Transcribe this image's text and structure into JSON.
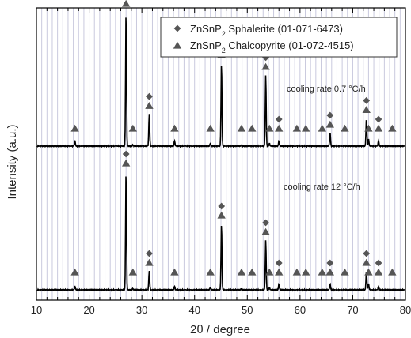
{
  "chart_data": {
    "type": "line",
    "xlabel": "2θ / degree",
    "ylabel": "Intensity (a.u.)",
    "xlim": [
      10,
      80
    ],
    "x_ticks": [
      10,
      20,
      30,
      40,
      50,
      60,
      70,
      80
    ],
    "x_tick_labels": [
      "10",
      "20",
      "30",
      "40",
      "50",
      "60",
      "70",
      "80"
    ],
    "grid": "vertical lines every 1 degree",
    "legend_position": "top-right",
    "legend": [
      {
        "marker": "diamond",
        "label_main": "ZnSnP",
        "label_sub": "2",
        "label_rest": " Sphalerite (01-071-6473)"
      },
      {
        "marker": "triangle",
        "label_main": "ZnSnP",
        "label_sub": "2",
        "label_rest": " Chalcopyrite (01-072-4515)"
      }
    ],
    "colors": {
      "trace": "#000000",
      "marker": "#555555",
      "grid": "#c9c9de"
    },
    "sphalerite_reflections": [
      27.0,
      31.4,
      45.1,
      53.5,
      56.0,
      65.7,
      72.6,
      74.9
    ],
    "chalcopyrite_reflections": [
      17.3,
      27.0,
      28.3,
      31.4,
      36.2,
      43.0,
      45.1,
      48.9,
      50.9,
      53.5,
      54.2,
      56.0,
      59.4,
      61.1,
      64.2,
      65.7,
      68.5,
      72.6,
      73.0,
      74.9,
      77.5
    ],
    "series": [
      {
        "name": "cooling rate 0.7 °C/h",
        "peaks": [
          {
            "x": 17.3,
            "rel_intensity": 0.04
          },
          {
            "x": 27.0,
            "rel_intensity": 1.0
          },
          {
            "x": 28.3,
            "rel_intensity": 0.01
          },
          {
            "x": 31.4,
            "rel_intensity": 0.24
          },
          {
            "x": 36.2,
            "rel_intensity": 0.04
          },
          {
            "x": 43.0,
            "rel_intensity": 0.02
          },
          {
            "x": 45.1,
            "rel_intensity": 0.62
          },
          {
            "x": 48.9,
            "rel_intensity": 0.01
          },
          {
            "x": 53.5,
            "rel_intensity": 0.53
          },
          {
            "x": 54.2,
            "rel_intensity": 0.02
          },
          {
            "x": 56.0,
            "rel_intensity": 0.04
          },
          {
            "x": 65.7,
            "rel_intensity": 0.1
          },
          {
            "x": 72.6,
            "rel_intensity": 0.21
          },
          {
            "x": 73.0,
            "rel_intensity": 0.05
          },
          {
            "x": 74.9,
            "rel_intensity": 0.04
          }
        ]
      },
      {
        "name": "cooling rate 12 °C/h",
        "peaks": [
          {
            "x": 17.3,
            "rel_intensity": 0.03
          },
          {
            "x": 27.0,
            "rel_intensity": 1.0
          },
          {
            "x": 28.3,
            "rel_intensity": 0.01
          },
          {
            "x": 31.4,
            "rel_intensity": 0.16
          },
          {
            "x": 36.2,
            "rel_intensity": 0.03
          },
          {
            "x": 43.0,
            "rel_intensity": 0.02
          },
          {
            "x": 45.1,
            "rel_intensity": 0.56
          },
          {
            "x": 48.9,
            "rel_intensity": 0.01
          },
          {
            "x": 53.5,
            "rel_intensity": 0.42
          },
          {
            "x": 54.2,
            "rel_intensity": 0.02
          },
          {
            "x": 56.0,
            "rel_intensity": 0.05
          },
          {
            "x": 65.7,
            "rel_intensity": 0.05
          },
          {
            "x": 72.6,
            "rel_intensity": 0.16
          },
          {
            "x": 73.0,
            "rel_intensity": 0.05
          },
          {
            "x": 74.9,
            "rel_intensity": 0.03
          }
        ]
      }
    ]
  }
}
